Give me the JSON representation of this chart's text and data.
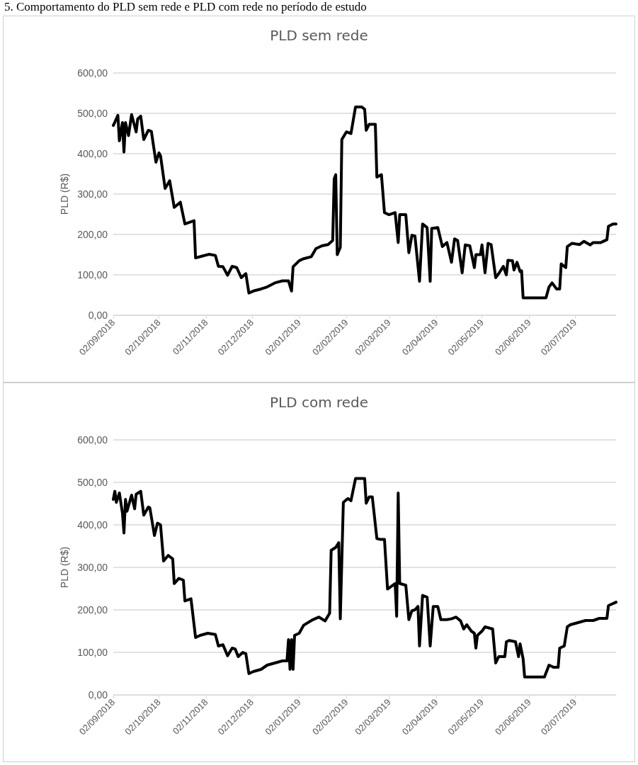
{
  "chart_data": [
    {
      "type": "line",
      "title": "PLD sem rede",
      "ylabel": "PLD (R$)",
      "annotations": [
        "5. Comportamento do PLD sem rede e PLD com rede no período de estudo"
      ],
      "x": [
        "2018-09-02",
        "2018-09-03",
        "2018-09-05",
        "2018-09-06",
        "2018-09-08",
        "2018-09-09",
        "2018-09-10",
        "2018-09-12",
        "2018-09-14",
        "2018-09-17",
        "2018-09-18",
        "2018-09-20",
        "2018-09-22",
        "2018-09-25",
        "2018-09-27",
        "2018-09-30",
        "2018-10-02",
        "2018-10-03",
        "2018-10-06",
        "2018-10-09",
        "2018-10-12",
        "2018-10-16",
        "2018-10-19",
        "2018-10-25",
        "2018-10-26",
        "2018-10-30",
        "2018-11-04",
        "2018-11-08",
        "2018-11-10",
        "2018-11-13",
        "2018-11-16",
        "2018-11-19",
        "2018-11-22",
        "2018-11-25",
        "2018-11-28",
        "2018-11-30",
        "2018-12-03",
        "2018-12-08",
        "2018-12-12",
        "2018-12-17",
        "2018-12-22",
        "2018-12-26",
        "2018-12-28",
        "2018-12-29",
        "2019-01-02",
        "2019-01-05",
        "2019-01-10",
        "2019-01-13",
        "2019-01-17",
        "2019-01-21",
        "2019-01-24",
        "2019-01-25",
        "2019-01-26",
        "2019-01-27",
        "2019-01-29",
        "2019-01-30",
        "2019-02-02",
        "2019-02-05",
        "2019-02-08",
        "2019-02-12",
        "2019-02-14",
        "2019-02-15",
        "2019-02-17",
        "2019-02-21",
        "2019-02-22",
        "2019-02-25",
        "2019-02-27",
        "2019-03-02",
        "2019-03-06",
        "2019-03-08",
        "2019-03-09",
        "2019-03-13",
        "2019-03-15",
        "2019-03-17",
        "2019-03-19",
        "2019-03-22",
        "2019-03-24",
        "2019-03-27",
        "2019-03-29",
        "2019-03-30",
        "2019-04-03",
        "2019-04-06",
        "2019-04-09",
        "2019-04-12",
        "2019-04-14",
        "2019-04-16",
        "2019-04-19",
        "2019-04-21",
        "2019-04-24",
        "2019-04-27",
        "2019-04-28",
        "2019-05-01",
        "2019-05-02",
        "2019-05-04",
        "2019-05-06",
        "2019-05-08",
        "2019-05-11",
        "2019-05-13",
        "2019-05-16",
        "2019-05-18",
        "2019-05-19",
        "2019-05-22",
        "2019-05-23",
        "2019-05-25",
        "2019-05-27",
        "2019-05-28",
        "2019-05-29",
        "2019-06-13",
        "2019-06-15",
        "2019-06-17",
        "2019-06-20",
        "2019-06-22",
        "2019-06-23",
        "2019-06-26",
        "2019-06-27",
        "2019-06-30",
        "2019-07-05",
        "2019-07-08",
        "2019-07-12",
        "2019-07-14",
        "2019-07-19",
        "2019-07-23",
        "2019-07-24",
        "2019-07-27",
        "2019-07-29"
      ],
      "series": [
        {
          "color": "#000000",
          "values": [
            470,
            478,
            495,
            432,
            477,
            404,
            477,
            445,
            497,
            454,
            486,
            493,
            435,
            458,
            455,
            379,
            402,
            395,
            314,
            333,
            267,
            280,
            226,
            234,
            142,
            146,
            151,
            148,
            121,
            120,
            99,
            121,
            118,
            93,
            103,
            55,
            60,
            65,
            70,
            80,
            85,
            85,
            60,
            120,
            135,
            140,
            145,
            165,
            172,
            175,
            185,
            338,
            348,
            150,
            168,
            435,
            454,
            450,
            516,
            516,
            510,
            458,
            473,
            473,
            342,
            348,
            254,
            249,
            254,
            180,
            249,
            249,
            155,
            198,
            196,
            84,
            226,
            217,
            84,
            215,
            217,
            170,
            180,
            131,
            189,
            185,
            105,
            174,
            172,
            118,
            150,
            150,
            174,
            105,
            178,
            175,
            93,
            103,
            121,
            100,
            136,
            135,
            112,
            131,
            108,
            110,
            43,
            43,
            70,
            80,
            65,
            65,
            127,
            118,
            170,
            178,
            175,
            183,
            174,
            180,
            180,
            187,
            220,
            226,
            226
          ]
        }
      ],
      "xlim": [
        "2018-09-02",
        "2019-07-29"
      ],
      "xticks": [
        {
          "value": "2018-09-02",
          "label": "02/09/2018"
        },
        {
          "value": "2018-10-02",
          "label": "02/10/2018"
        },
        {
          "value": "2018-11-02",
          "label": "02/11/2018"
        },
        {
          "value": "2018-12-02",
          "label": "02/12/2018"
        },
        {
          "value": "2019-01-02",
          "label": "02/01/2019"
        },
        {
          "value": "2019-02-02",
          "label": "02/02/2019"
        },
        {
          "value": "2019-03-02",
          "label": "02/03/2019"
        },
        {
          "value": "2019-04-02",
          "label": "02/04/2019"
        },
        {
          "value": "2019-05-02",
          "label": "02/05/2019"
        },
        {
          "value": "2019-06-02",
          "label": "02/06/2019"
        },
        {
          "value": "2019-07-02",
          "label": "02/07/2019"
        }
      ],
      "ylim": [
        0,
        600
      ],
      "yticks": [
        {
          "value": 0,
          "label": "0,00"
        },
        {
          "value": 100,
          "label": "100,00"
        },
        {
          "value": 200,
          "label": "200,00"
        },
        {
          "value": 300,
          "label": "300,00"
        },
        {
          "value": 400,
          "label": "400,00"
        },
        {
          "value": 500,
          "label": "500,00"
        },
        {
          "value": 600,
          "label": "600,00"
        }
      ],
      "grid": "y"
    },
    {
      "type": "line",
      "title": "PLD com rede",
      "ylabel": "PLD (R$)",
      "x": [
        "2018-09-02",
        "2018-09-03",
        "2018-09-04",
        "2018-09-06",
        "2018-09-08",
        "2018-09-09",
        "2018-09-10",
        "2018-09-11",
        "2018-09-14",
        "2018-09-16",
        "2018-09-17",
        "2018-09-20",
        "2018-09-22",
        "2018-09-25",
        "2018-09-26",
        "2018-09-29",
        "2018-10-01",
        "2018-10-03",
        "2018-10-05",
        "2018-10-08",
        "2018-10-11",
        "2018-10-12",
        "2018-10-15",
        "2018-10-18",
        "2018-10-19",
        "2018-10-23",
        "2018-10-26",
        "2018-10-29",
        "2018-11-03",
        "2018-11-08",
        "2018-11-10",
        "2018-11-13",
        "2018-11-16",
        "2018-11-19",
        "2018-11-21",
        "2018-11-23",
        "2018-11-26",
        "2018-11-28",
        "2018-11-30",
        "2018-12-03",
        "2018-12-08",
        "2018-12-12",
        "2018-12-17",
        "2018-12-22",
        "2018-12-25",
        "2018-12-26",
        "2018-12-27",
        "2018-12-28",
        "2018-12-29",
        "2018-12-30",
        "2019-01-02",
        "2019-01-05",
        "2019-01-11",
        "2019-01-15",
        "2019-01-19",
        "2019-01-22",
        "2019-01-23",
        "2019-01-26",
        "2019-01-28",
        "2019-01-29",
        "2019-01-31",
        "2019-02-03",
        "2019-02-05",
        "2019-02-08",
        "2019-02-14",
        "2019-02-15",
        "2019-02-17",
        "2019-02-19",
        "2019-02-22",
        "2019-02-24",
        "2019-02-27",
        "2019-03-01",
        "2019-03-06",
        "2019-03-07",
        "2019-03-08",
        "2019-03-09",
        "2019-03-13",
        "2019-03-15",
        "2019-03-17",
        "2019-03-19",
        "2019-03-21",
        "2019-03-22",
        "2019-03-24",
        "2019-03-27",
        "2019-03-29",
        "2019-03-31",
        "2019-04-03",
        "2019-04-05",
        "2019-04-09",
        "2019-04-12",
        "2019-04-15",
        "2019-04-18",
        "2019-04-20",
        "2019-04-22",
        "2019-04-25",
        "2019-04-27",
        "2019-04-28",
        "2019-04-29",
        "2019-05-02",
        "2019-05-04",
        "2019-05-09",
        "2019-05-11",
        "2019-05-13",
        "2019-05-17",
        "2019-05-18",
        "2019-05-20",
        "2019-05-24",
        "2019-05-26",
        "2019-05-27",
        "2019-05-29",
        "2019-05-30",
        "2019-06-12",
        "2019-06-15",
        "2019-06-18",
        "2019-06-21",
        "2019-06-22",
        "2019-06-25",
        "2019-06-27",
        "2019-06-29",
        "2019-07-04",
        "2019-07-09",
        "2019-07-14",
        "2019-07-18",
        "2019-07-23",
        "2019-07-24",
        "2019-07-29"
      ],
      "series": [
        {
          "color": "#000000",
          "values": [
            460,
            479,
            453,
            475,
            428,
            381,
            460,
            432,
            470,
            438,
            472,
            479,
            423,
            442,
            440,
            375,
            404,
            400,
            315,
            328,
            320,
            262,
            274,
            270,
            221,
            226,
            135,
            140,
            145,
            142,
            115,
            118,
            92,
            110,
            108,
            90,
            100,
            97,
            50,
            55,
            60,
            70,
            75,
            80,
            80,
            130,
            60,
            130,
            60,
            140,
            145,
            164,
            177,
            183,
            174,
            192,
            340,
            347,
            358,
            179,
            453,
            462,
            457,
            509,
            509,
            451,
            466,
            466,
            368,
            366,
            366,
            249,
            262,
            185,
            475,
            262,
            258,
            177,
            198,
            200,
            208,
            115,
            234,
            230,
            115,
            208,
            208,
            177,
            177,
            179,
            183,
            174,
            155,
            165,
            150,
            145,
            110,
            140,
            150,
            160,
            155,
            75,
            90,
            90,
            125,
            128,
            125,
            90,
            120,
            85,
            42,
            42,
            70,
            65,
            65,
            110,
            115,
            160,
            165,
            170,
            175,
            175,
            180,
            180,
            210,
            218
          ]
        }
      ],
      "xlim": [
        "2018-09-02",
        "2019-07-29"
      ],
      "xticks": [
        {
          "value": "2018-09-02",
          "label": "02/09/2018"
        },
        {
          "value": "2018-10-02",
          "label": "02/10/2018"
        },
        {
          "value": "2018-11-02",
          "label": "02/11/2018"
        },
        {
          "value": "2018-12-02",
          "label": "02/12/2018"
        },
        {
          "value": "2019-01-02",
          "label": "02/01/2019"
        },
        {
          "value": "2019-02-02",
          "label": "02/02/2019"
        },
        {
          "value": "2019-03-02",
          "label": "02/03/2019"
        },
        {
          "value": "2019-04-02",
          "label": "02/04/2019"
        },
        {
          "value": "2019-05-02",
          "label": "02/05/2019"
        },
        {
          "value": "2019-06-02",
          "label": "02/06/2019"
        },
        {
          "value": "2019-07-02",
          "label": "02/07/2019"
        }
      ],
      "ylim": [
        0,
        600
      ],
      "yticks": [
        {
          "value": 0,
          "label": "0,00"
        },
        {
          "value": 100,
          "label": "100,00"
        },
        {
          "value": 200,
          "label": "200,00"
        },
        {
          "value": 300,
          "label": "300,00"
        },
        {
          "value": 400,
          "label": "400,00"
        },
        {
          "value": 500,
          "label": "500,00"
        },
        {
          "value": 600,
          "label": "600,00"
        }
      ],
      "grid": "y"
    }
  ]
}
